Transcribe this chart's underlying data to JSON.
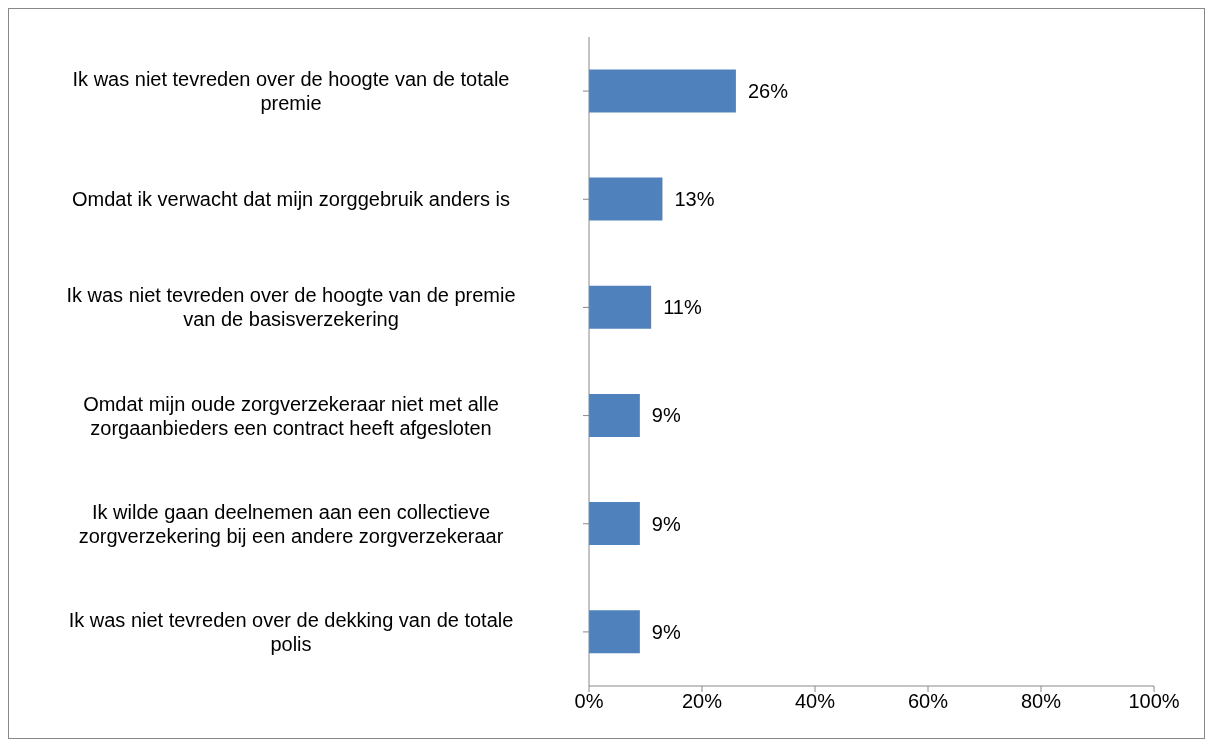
{
  "chart_data": {
    "type": "bar",
    "orientation": "horizontal",
    "categories": [
      "Ik was niet tevreden over de hoogte van de totale premie",
      "Omdat ik verwacht dat mijn zorggebruik anders is",
      "Ik was niet tevreden over de hoogte van de premie van de basisverzekering",
      "Omdat mijn oude zorgverzekeraar niet met alle zorgaanbieders een contract heeft afgesloten",
      "Ik wilde gaan deelnemen aan een collectieve zorgverzekering bij een andere zorgverzekeraar",
      "Ik was niet tevreden over de dekking van de totale polis"
    ],
    "values": [
      26,
      13,
      11,
      9,
      9,
      9
    ],
    "value_labels": [
      "26%",
      "13%",
      "11%",
      "9%",
      "9%",
      "9%"
    ],
    "color": "#4f81bd",
    "xlim": [
      0,
      100
    ],
    "xticks": [
      {
        "value": 0,
        "label": "0%"
      },
      {
        "value": 20,
        "label": "20%"
      },
      {
        "value": 40,
        "label": "40%"
      },
      {
        "value": 60,
        "label": "60%"
      },
      {
        "value": 80,
        "label": "80%"
      },
      {
        "value": 100,
        "label": "100%"
      }
    ],
    "grid": false,
    "legend": false
  }
}
